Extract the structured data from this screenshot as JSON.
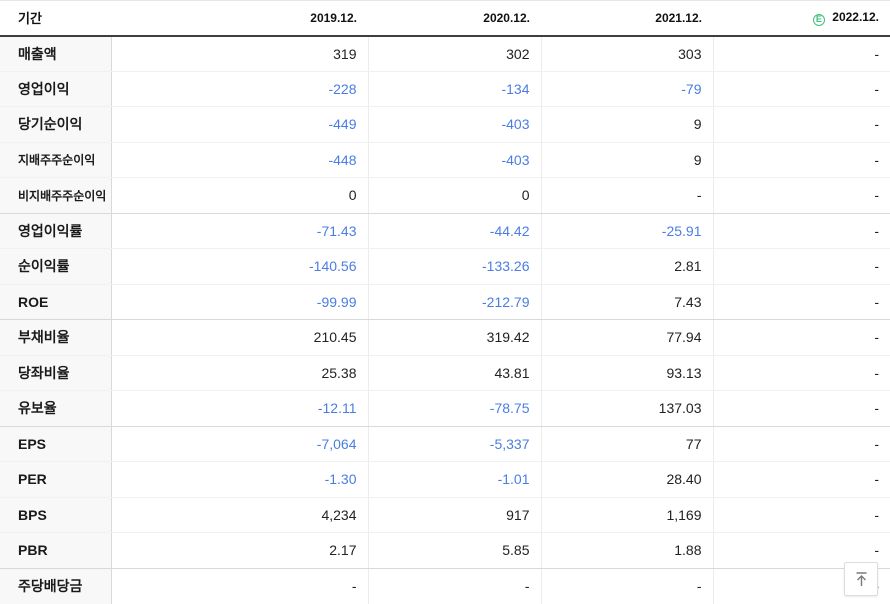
{
  "header": {
    "period_label": "기간",
    "years": [
      "2019.12.",
      "2020.12.",
      "2021.12.",
      "2022.12."
    ],
    "estimate_badge": "E"
  },
  "rows": [
    {
      "label": "매출액",
      "values": [
        "319",
        "302",
        "303",
        "-"
      ]
    },
    {
      "label": "영업이익",
      "values": [
        "-228",
        "-134",
        "-79",
        "-"
      ]
    },
    {
      "label": "당기순이익",
      "values": [
        "-449",
        "-403",
        "9",
        "-"
      ]
    },
    {
      "label": "지배주주순이익",
      "values": [
        "-448",
        "-403",
        "9",
        "-"
      ],
      "sub": true
    },
    {
      "label": "비지배주주순이익",
      "values": [
        "0",
        "0",
        "-",
        "-"
      ],
      "sub": true,
      "group_end": true
    },
    {
      "label": "영업이익률",
      "values": [
        "-71.43",
        "-44.42",
        "-25.91",
        "-"
      ]
    },
    {
      "label": "순이익률",
      "values": [
        "-140.56",
        "-133.26",
        "2.81",
        "-"
      ]
    },
    {
      "label": "ROE",
      "values": [
        "-99.99",
        "-212.79",
        "7.43",
        "-"
      ],
      "group_end": true
    },
    {
      "label": "부채비율",
      "values": [
        "210.45",
        "319.42",
        "77.94",
        "-"
      ]
    },
    {
      "label": "당좌비율",
      "values": [
        "25.38",
        "43.81",
        "93.13",
        "-"
      ]
    },
    {
      "label": "유보율",
      "values": [
        "-12.11",
        "-78.75",
        "137.03",
        "-"
      ],
      "group_end": true
    },
    {
      "label": "EPS",
      "values": [
        "-7,064",
        "-5,337",
        "77",
        "-"
      ]
    },
    {
      "label": "PER",
      "values": [
        "-1.30",
        "-1.01",
        "28.40",
        "-"
      ]
    },
    {
      "label": "BPS",
      "values": [
        "4,234",
        "917",
        "1,169",
        "-"
      ]
    },
    {
      "label": "PBR",
      "values": [
        "2.17",
        "5.85",
        "1.88",
        "-"
      ],
      "group_end": true
    },
    {
      "label": "주당배당금",
      "values": [
        "-",
        "-",
        "-",
        "-"
      ]
    }
  ],
  "colors": {
    "negative_value": "#4a7de4",
    "estimate_green": "#3fc07c"
  },
  "scroll_top": {
    "tooltip": ""
  }
}
